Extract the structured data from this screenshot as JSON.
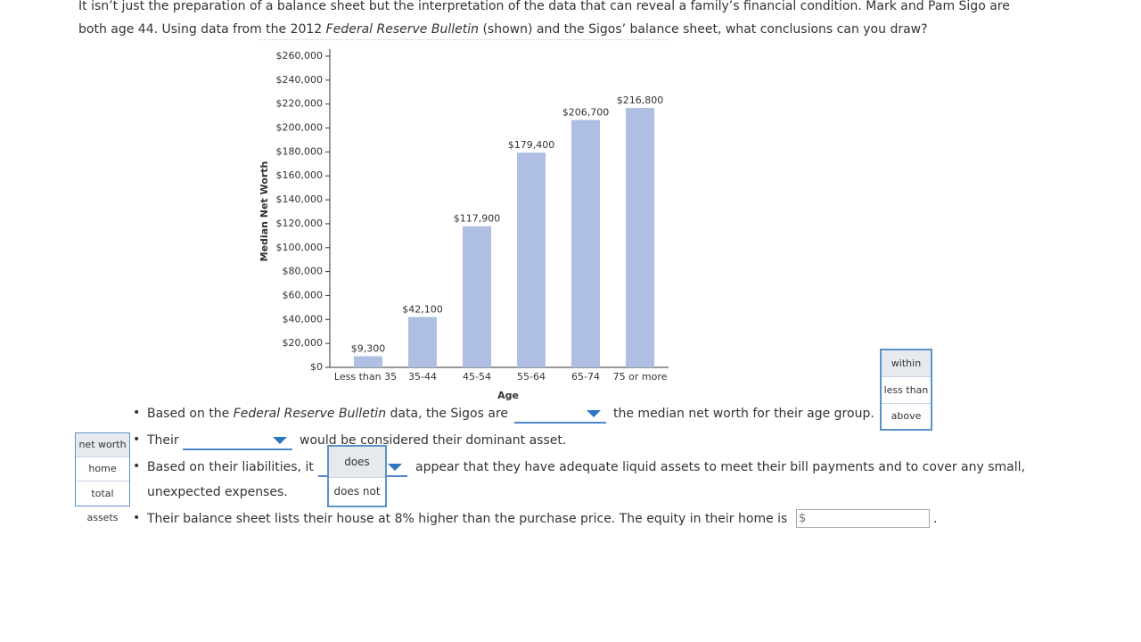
{
  "intro": {
    "line1": "It isn’t just the preparation of a balance sheet but the interpretation of the data that can reveal a family’s financial condition. Mark and Pam Sigo are",
    "line2_a": "both age 44. Using data from the 2012 ",
    "line2_italic": "Federal Reserve Bulletin",
    "line2_b": " (shown) and the Sigos’ balance sheet, what conclusions can you draw?"
  },
  "chart_data": {
    "type": "bar",
    "x_label": "Age",
    "y_label": "Median Net Worth",
    "color": "#aebfe3",
    "categories": [
      "Less than 35",
      "35-44",
      "45-54",
      "55-64",
      "65-74",
      "75 or more"
    ],
    "values": [
      9300,
      42100,
      117900,
      179400,
      206700,
      216800
    ],
    "value_labels": [
      "$9,300",
      "$42,100",
      "$117,900",
      "$179,400",
      "$206,700",
      "$216,800"
    ],
    "ylim": [
      0,
      260000
    ],
    "yticks": [
      {
        "value": 0,
        "label": "$0"
      },
      {
        "value": 20000,
        "label": "$20,000"
      },
      {
        "value": 40000,
        "label": "$40,000"
      },
      {
        "value": 60000,
        "label": "$60,000"
      },
      {
        "value": 80000,
        "label": "$80,000"
      },
      {
        "value": 100000,
        "label": "$100,000"
      },
      {
        "value": 120000,
        "label": "$120,000"
      },
      {
        "value": 140000,
        "label": "$140,000"
      },
      {
        "value": 160000,
        "label": "$160,000"
      },
      {
        "value": 180000,
        "label": "$180,000"
      },
      {
        "value": 200000,
        "label": "$200,000"
      },
      {
        "value": 220000,
        "label": "$220,000"
      },
      {
        "value": 240000,
        "label": "$240,000"
      },
      {
        "value": 260000,
        "label": "$260,000"
      }
    ]
  },
  "questions": [
    {
      "text_a": "Based on the ",
      "text_italic": "Federal Reserve Bulletin",
      "text_b": " data, the Sigos are",
      "text_c": "the median net worth for their age group.",
      "options": [
        "within",
        "less than",
        "above"
      ]
    },
    {
      "text_a": "Their",
      "text_b": "would be considered their dominant asset.",
      "options": [
        "net worth",
        "home",
        "total assets"
      ]
    },
    {
      "text_a": "Based on their liabilities, it",
      "text_b": "appear that they have adequate liquid assets to meet their bill payments and to cover any small,",
      "text_c": "unexpected expenses.",
      "options": [
        "does",
        "does not"
      ]
    },
    {
      "text_a": "Their balance sheet lists their house at 8% higher than the purchase price. The equity in their home is",
      "placeholder": "$",
      "text_b": "."
    }
  ]
}
